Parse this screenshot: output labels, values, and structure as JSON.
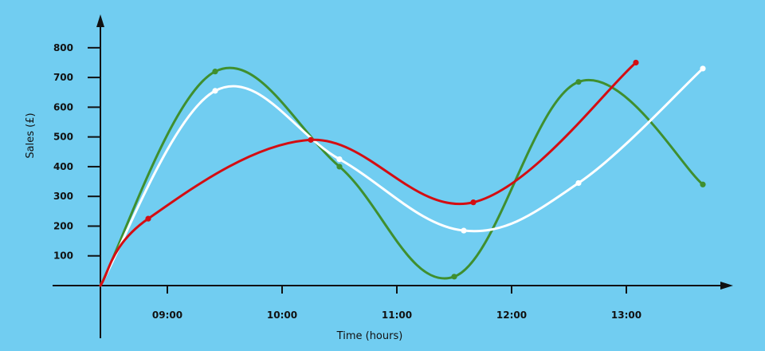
{
  "colors": {
    "background": "#71cdf1",
    "axis": "#111111"
  },
  "chart_data": {
    "type": "line",
    "title": "",
    "xlabel": "Time (hours)",
    "ylabel": "Sales (£)",
    "x_ticks": [
      "09:00",
      "10:00",
      "11:00",
      "12:00",
      "13:00"
    ],
    "y_ticks": [
      100,
      200,
      300,
      400,
      500,
      600,
      700,
      800
    ],
    "xlim": [
      "08:25",
      "13:55"
    ],
    "ylim": [
      0,
      850
    ],
    "grid": false,
    "legend": "none",
    "series": [
      {
        "color": "#3f8f2f",
        "points": [
          {
            "x": "08:25",
            "y": 0
          },
          {
            "x": "09:25",
            "y": 720
          },
          {
            "x": "10:30",
            "y": 400
          },
          {
            "x": "11:30",
            "y": 30
          },
          {
            "x": "12:35",
            "y": 685
          },
          {
            "x": "13:40",
            "y": 340
          }
        ]
      },
      {
        "color": "#ffffff",
        "points": [
          {
            "x": "08:25",
            "y": 0
          },
          {
            "x": "09:25",
            "y": 655
          },
          {
            "x": "10:30",
            "y": 425
          },
          {
            "x": "11:35",
            "y": 185
          },
          {
            "x": "12:35",
            "y": 345
          },
          {
            "x": "13:40",
            "y": 730
          }
        ]
      },
      {
        "color": "#d40d12",
        "points": [
          {
            "x": "08:25",
            "y": 0
          },
          {
            "x": "08:50",
            "y": 225
          },
          {
            "x": "10:15",
            "y": 490
          },
          {
            "x": "11:40",
            "y": 280
          },
          {
            "x": "13:05",
            "y": 750
          }
        ]
      }
    ]
  }
}
